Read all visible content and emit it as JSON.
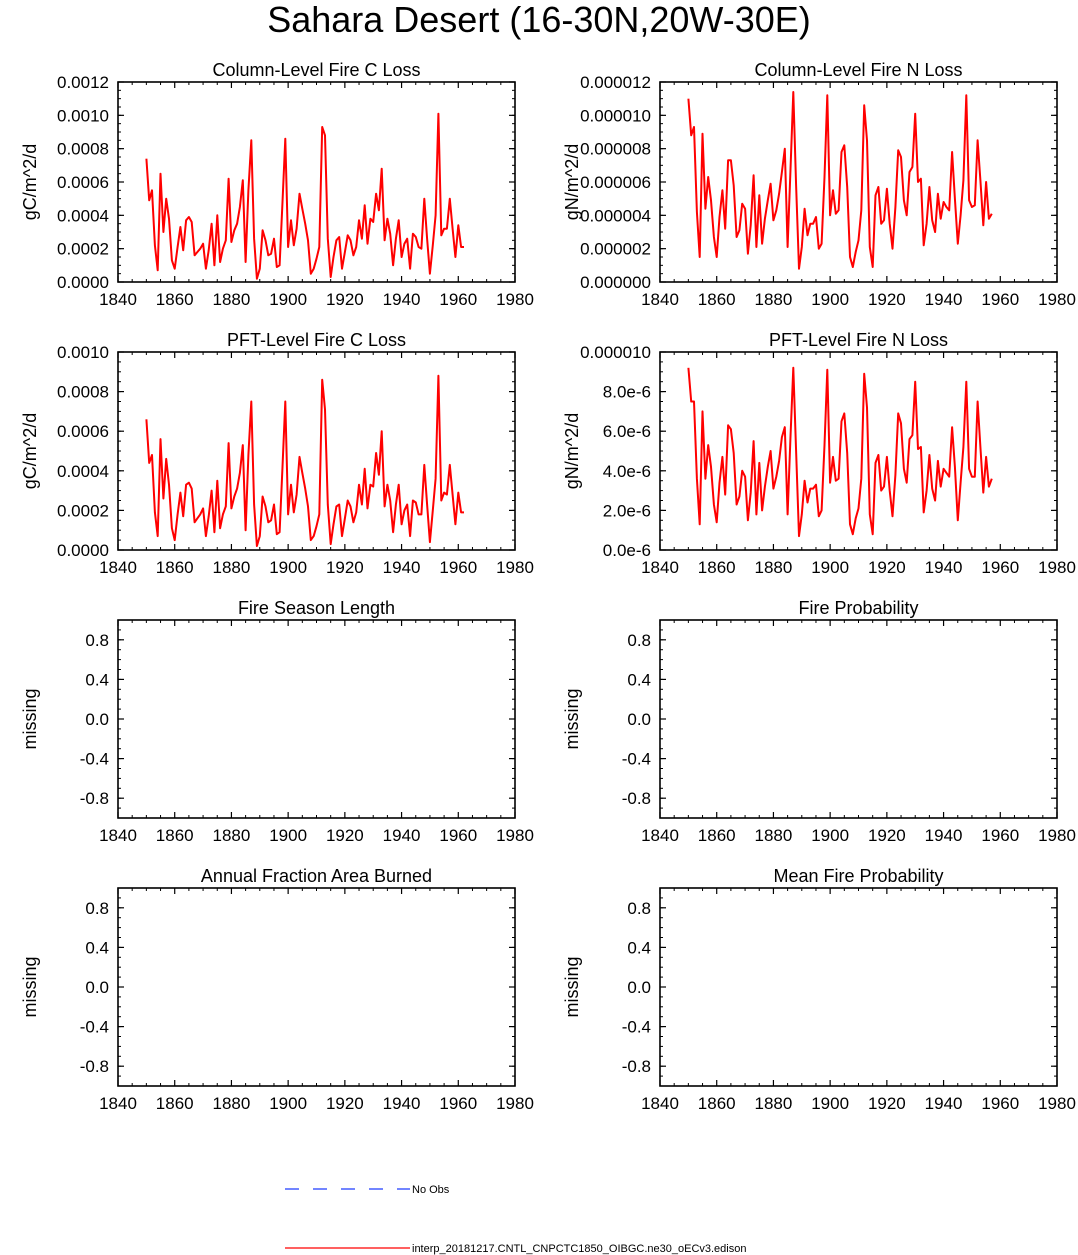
{
  "page": {
    "title": "Sahara Desert (16-30N,20W-30E)"
  },
  "legend": {
    "obs_label": "No Obs",
    "obs_color": "#1f3cff",
    "model_label": "interp_20181217.CNTL_CNPCTC1850_OIBGC.ne30_oECv3.edison",
    "model_color": "#ff0000"
  },
  "chart_data": [
    {
      "type": "line",
      "title": "Column-Level Fire C Loss",
      "ylabel": "gC/m^2/d",
      "xlim": [
        1840,
        1980
      ],
      "ylim": [
        0,
        0.0012
      ],
      "xticks": [
        "1840",
        "1860",
        "1880",
        "1900",
        "1920",
        "1940",
        "1960",
        "1980"
      ],
      "yticks": [
        "0.0000",
        "0.0002",
        "0.0004",
        "0.0006",
        "0.0008",
        "0.0010",
        "0.0012"
      ],
      "x_start": 1850,
      "series": [
        {
          "values": [
            0.00074,
            0.00049,
            0.00055,
            0.00022,
            7e-05,
            0.00065,
            0.0003,
            0.0005,
            0.00038,
            0.00013,
            8e-05,
            0.00021,
            0.00033,
            0.00019,
            0.00037,
            0.00039,
            0.00036,
            0.00016,
            0.00018,
            0.0002,
            0.00023,
            8e-05,
            0.00019,
            0.00035,
            0.0001,
            0.0004,
            0.00012,
            0.0002,
            0.00025,
            0.00062,
            0.00024,
            0.00031,
            0.00035,
            0.00045,
            0.00061,
            0.00012,
            0.00055,
            0.00085,
            0.00026,
            2e-05,
            8e-05,
            0.00031,
            0.00025,
            0.00016,
            0.00017,
            0.00026,
            9e-05,
            0.0001,
            0.00048,
            0.00086,
            0.00021,
            0.00037,
            0.00022,
            0.00032,
            0.00053,
            0.00044,
            0.00035,
            0.00025,
            5e-05,
            8e-05,
            0.00014,
            0.00021,
            0.00093,
            0.00088,
            0.00026,
            3e-05,
            0.00015,
            0.00025,
            0.00027,
            8e-05,
            0.00018,
            0.00028,
            0.00025,
            0.00016,
            0.00021,
            0.00037,
            0.00026,
            0.00046,
            0.00023,
            0.00038,
            0.00036,
            0.00053,
            0.00043,
            0.00068,
            0.00025,
            0.00038,
            0.00029,
            0.0001,
            0.00026,
            0.00037,
            0.00015,
            0.00023,
            0.00026,
            8e-05,
            0.00029,
            0.00027,
            0.00021,
            0.0002,
            0.0005,
            0.00026,
            5e-05,
            0.00022,
            0.0004,
            0.00101,
            0.00028,
            0.00032,
            0.00032,
            0.0005,
            0.00032,
            0.00015,
            0.00034,
            0.00021,
            0.00021
          ]
        }
      ]
    },
    {
      "type": "line",
      "title": "Column-Level Fire N Loss",
      "ylabel": "gN/m^2/d",
      "xlim": [
        1840,
        1980
      ],
      "ylim": [
        0,
        1.2e-05
      ],
      "xticks": [
        "1840",
        "1860",
        "1880",
        "1900",
        "1920",
        "1940",
        "1960",
        "1980"
      ],
      "yticks": [
        "0.000000",
        "0.000002",
        "0.000004",
        "0.000006",
        "0.000008",
        "0.000010",
        "0.000012"
      ],
      "x_start": 1850,
      "series": [
        {
          "values": [
            1.1e-05,
            8.8e-06,
            9.3e-06,
            4.2e-06,
            1.5e-06,
            8.9e-06,
            4.4e-06,
            6.3e-06,
            4.9e-06,
            2.7e-06,
            1.5e-06,
            3.9e-06,
            5.5e-06,
            3.2e-06,
            7.3e-06,
            7.3e-06,
            5.8e-06,
            2.7e-06,
            3.1e-06,
            4.7e-06,
            4.4e-06,
            1.7e-06,
            3.4e-06,
            6.4e-06,
            2.1e-06,
            5.2e-06,
            2.3e-06,
            3.8e-06,
            4.9e-06,
            5.9e-06,
            3.7e-06,
            4.3e-06,
            5.3e-06,
            6.6e-06,
            8e-06,
            2.1e-06,
            6.6e-06,
            1.14e-05,
            5.8e-06,
            8e-07,
            2.1e-06,
            4.4e-06,
            2.8e-06,
            3.5e-06,
            3.5e-06,
            3.9e-06,
            2e-06,
            2.3e-06,
            6.3e-06,
            1.12e-05,
            4e-06,
            5.5e-06,
            4.1e-06,
            4.3e-06,
            7.8e-06,
            8.2e-06,
            5.7e-06,
            1.5e-06,
            9e-07,
            1.8e-06,
            2.5e-06,
            4.3e-06,
            1.06e-05,
            8.5e-06,
            2.1e-06,
            9e-07,
            5.2e-06,
            5.7e-06,
            3.5e-06,
            3.7e-06,
            5.6e-06,
            3.5e-06,
            2e-06,
            4.5e-06,
            7.9e-06,
            7.5e-06,
            4.9e-06,
            4e-06,
            6.6e-06,
            6.9e-06,
            1.01e-05,
            6e-06,
            6.2e-06,
            2.2e-06,
            3.5e-06,
            5.7e-06,
            3.7e-06,
            3e-06,
            5.3e-06,
            3.8e-06,
            4.8e-06,
            4.5e-06,
            4.3e-06,
            7.8e-06,
            5e-06,
            2.3e-06,
            4e-06,
            6.1e-06,
            1.12e-05,
            4.9e-06,
            4.5e-06,
            4.6e-06,
            8.5e-06,
            6.1e-06,
            3.4e-06,
            6e-06,
            3.8e-06,
            4.1e-06
          ]
        }
      ]
    },
    {
      "type": "line",
      "title": "PFT-Level Fire C Loss",
      "ylabel": "gC/m^2/d",
      "xlim": [
        1840,
        1980
      ],
      "ylim": [
        0,
        0.001
      ],
      "xticks": [
        "1840",
        "1860",
        "1880",
        "1900",
        "1920",
        "1940",
        "1960",
        "1980"
      ],
      "yticks": [
        "0.0000",
        "0.0002",
        "0.0004",
        "0.0006",
        "0.0008",
        "0.0010"
      ],
      "x_start": 1850,
      "series": [
        {
          "values": [
            0.00066,
            0.00044,
            0.00048,
            0.00019,
            7e-05,
            0.00056,
            0.00026,
            0.00046,
            0.00033,
            0.00011,
            5e-05,
            0.00018,
            0.00029,
            0.00017,
            0.00033,
            0.00034,
            0.00031,
            0.00014,
            0.00016,
            0.00018,
            0.00021,
            7e-05,
            0.00017,
            0.0003,
            9e-05,
            0.00035,
            0.00011,
            0.00018,
            0.00022,
            0.00054,
            0.00021,
            0.00027,
            0.00031,
            0.00039,
            0.00053,
            0.0001,
            0.00048,
            0.00075,
            0.00023,
            2e-05,
            7e-05,
            0.00027,
            0.00022,
            0.00014,
            0.00015,
            0.00023,
            8e-05,
            9e-05,
            0.00042,
            0.00075,
            0.00018,
            0.00033,
            0.00019,
            0.00028,
            0.00047,
            0.00039,
            0.00031,
            0.00022,
            5e-05,
            7e-05,
            0.00012,
            0.00018,
            0.00086,
            0.00071,
            0.00023,
            3e-05,
            0.00013,
            0.00022,
            0.00023,
            7e-05,
            0.00016,
            0.00025,
            0.00022,
            0.00014,
            0.00019,
            0.00033,
            0.00023,
            0.00041,
            0.00021,
            0.00033,
            0.00032,
            0.00049,
            0.00038,
            0.0006,
            0.00022,
            0.00033,
            0.00025,
            9e-05,
            0.00023,
            0.00033,
            0.00013,
            0.0002,
            0.00023,
            7e-05,
            0.00025,
            0.00024,
            0.00018,
            0.00018,
            0.00043,
            0.00023,
            4e-05,
            0.0002,
            0.00036,
            0.00088,
            0.00025,
            0.00029,
            0.00028,
            0.00043,
            0.00028,
            0.00013,
            0.00029,
            0.00019,
            0.00019
          ]
        }
      ]
    },
    {
      "type": "line",
      "title": "PFT-Level Fire N Loss",
      "ylabel": "gN/m^2/d",
      "xlim": [
        1840,
        1980
      ],
      "ylim": [
        0,
        1e-05
      ],
      "xticks": [
        "1840",
        "1860",
        "1880",
        "1900",
        "1920",
        "1940",
        "1960",
        "1980"
      ],
      "yticks": [
        "0.0e-6",
        "2.0e-6",
        "4.0e-6",
        "6.0e-6",
        "8.0e-6",
        "0.000010"
      ],
      "x_start": 1850,
      "series": [
        {
          "values": [
            9.2e-06,
            7.5e-06,
            7.5e-06,
            3.6e-06,
            1.3e-06,
            7e-06,
            3.6e-06,
            5.3e-06,
            4.2e-06,
            2.3e-06,
            1.4e-06,
            3.4e-06,
            4.7e-06,
            2.8e-06,
            6.3e-06,
            6.1e-06,
            4.9e-06,
            2.3e-06,
            2.7e-06,
            4e-06,
            3.7e-06,
            1.5e-06,
            2.9e-06,
            5.5e-06,
            1.8e-06,
            4.4e-06,
            2e-06,
            3.2e-06,
            4.2e-06,
            5e-06,
            3.1e-06,
            3.7e-06,
            4.5e-06,
            5.7e-06,
            6.2e-06,
            1.8e-06,
            5.6e-06,
            9.2e-06,
            5e-06,
            7e-07,
            1.8e-06,
            3.5e-06,
            2.4e-06,
            3.1e-06,
            3.1e-06,
            3.3e-06,
            1.7e-06,
            2e-06,
            5.3e-06,
            9.1e-06,
            3.4e-06,
            4.7e-06,
            3.5e-06,
            3.6e-06,
            6.5e-06,
            6.9e-06,
            4.9e-06,
            1.3e-06,
            8e-07,
            1.6e-06,
            2.1e-06,
            3.6e-06,
            8.9e-06,
            7.2e-06,
            1.8e-06,
            8e-07,
            4.4e-06,
            4.8e-06,
            3e-06,
            3.2e-06,
            4.7e-06,
            3e-06,
            1.7e-06,
            3.8e-06,
            6.9e-06,
            6.4e-06,
            4.1e-06,
            3.4e-06,
            5.6e-06,
            5.8e-06,
            8.5e-06,
            5.1e-06,
            5.2e-06,
            1.9e-06,
            3e-06,
            4.8e-06,
            3.1e-06,
            2.5e-06,
            4.5e-06,
            3.2e-06,
            4.1e-06,
            3.9e-06,
            3.7e-06,
            6.2e-06,
            4.2e-06,
            1.5e-06,
            3.4e-06,
            5.2e-06,
            8.5e-06,
            4.1e-06,
            3.7e-06,
            3.7e-06,
            7.5e-06,
            5.2e-06,
            2.9e-06,
            4.7e-06,
            3.2e-06,
            3.6e-06
          ]
        }
      ]
    },
    {
      "type": "line",
      "title": "Fire Season Length",
      "ylabel": "missing",
      "xlim": [
        1840,
        1980
      ],
      "ylim": [
        -1,
        1
      ],
      "xticks": [
        "1840",
        "1860",
        "1880",
        "1900",
        "1920",
        "1940",
        "1960",
        "1980"
      ],
      "yticks": [
        "-0.8",
        "-0.4",
        "0.0",
        "0.4",
        "0.8"
      ],
      "series": []
    },
    {
      "type": "line",
      "title": "Fire Probability",
      "ylabel": "missing",
      "xlim": [
        1840,
        1980
      ],
      "ylim": [
        -1,
        1
      ],
      "xticks": [
        "1840",
        "1860",
        "1880",
        "1900",
        "1920",
        "1940",
        "1960",
        "1980"
      ],
      "yticks": [
        "-0.8",
        "-0.4",
        "0.0",
        "0.4",
        "0.8"
      ],
      "series": []
    },
    {
      "type": "line",
      "title": "Annual Fraction Area Burned",
      "ylabel": "missing",
      "xlim": [
        1840,
        1980
      ],
      "ylim": [
        -1,
        1
      ],
      "xticks": [
        "1840",
        "1860",
        "1880",
        "1900",
        "1920",
        "1940",
        "1960",
        "1980"
      ],
      "yticks": [
        "-0.8",
        "-0.4",
        "0.0",
        "0.4",
        "0.8"
      ],
      "series": []
    },
    {
      "type": "line",
      "title": "Mean Fire Probability",
      "ylabel": "missing",
      "xlim": [
        1840,
        1980
      ],
      "ylim": [
        -1,
        1
      ],
      "xticks": [
        "1840",
        "1860",
        "1880",
        "1900",
        "1920",
        "1940",
        "1960",
        "1980"
      ],
      "yticks": [
        "-0.8",
        "-0.4",
        "0.0",
        "0.4",
        "0.8"
      ],
      "series": []
    }
  ]
}
